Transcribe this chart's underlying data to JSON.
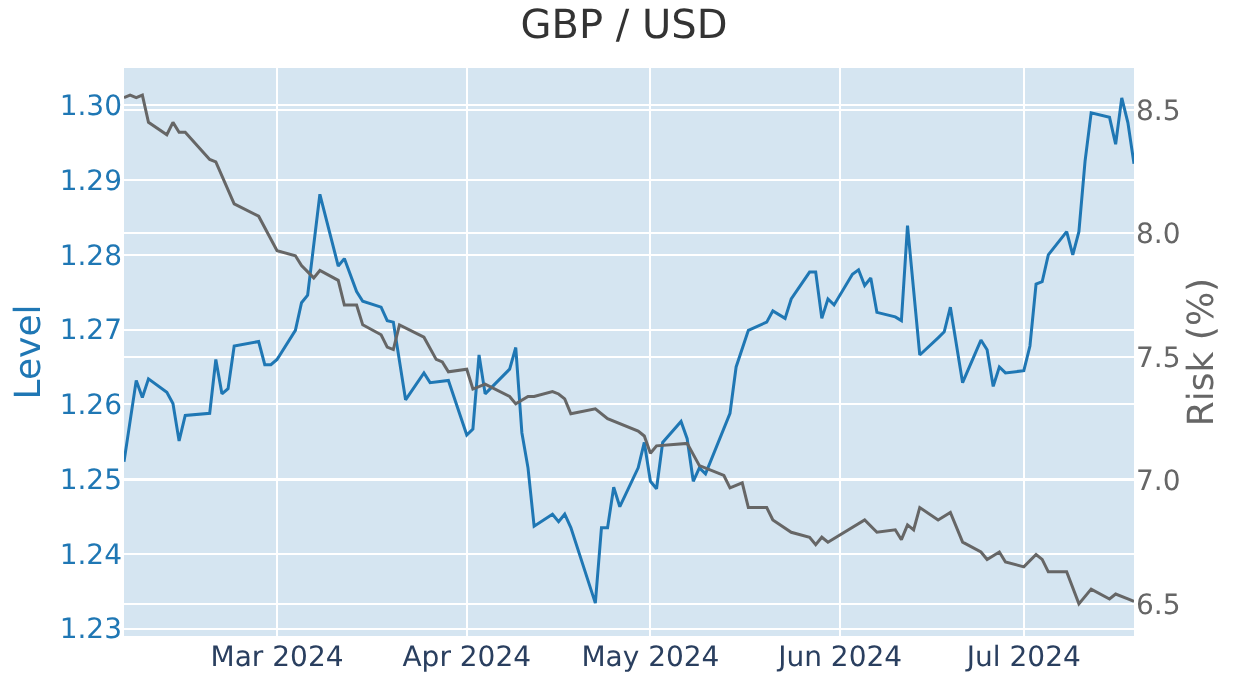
{
  "chart_data": {
    "type": "line",
    "title": "GBP / USD",
    "ylabel": "Level",
    "y2label": "Risk (%)",
    "xlim": [
      "2024-02-05",
      "2024-07-19"
    ],
    "xticks": [
      {
        "value": "2024-03-01",
        "label": "Mar 2024"
      },
      {
        "value": "2024-04-01",
        "label": "Apr 2024"
      },
      {
        "value": "2024-05-01",
        "label": "May 2024"
      },
      {
        "value": "2024-06-01",
        "label": "Jun 2024"
      },
      {
        "value": "2024-07-01",
        "label": "Jul 2024"
      }
    ],
    "ylim": [
      1.229,
      1.305
    ],
    "yticks": [
      1.23,
      1.24,
      1.25,
      1.26,
      1.27,
      1.28,
      1.29,
      {
        "value": 1.3,
        "label": "1.30"
      }
    ],
    "y2lim": [
      6.37,
      8.67
    ],
    "y2ticks": [
      6.5,
      {
        "value": 7.0,
        "label": "7.0"
      },
      7.5,
      {
        "value": 8.0,
        "label": "8.0"
      },
      8.5
    ],
    "grid": true,
    "marker": "none",
    "line_style": "solid",
    "series": [
      {
        "color": "#1f77b4",
        "x": [
          "2024-02-05",
          "2024-02-07",
          "2024-02-08",
          "2024-02-09",
          "2024-02-12",
          "2024-02-13",
          "2024-02-14",
          "2024-02-15",
          "2024-02-19",
          "2024-02-20",
          "2024-02-21",
          "2024-02-22",
          "2024-02-23",
          "2024-02-27",
          "2024-02-28",
          "2024-02-29",
          "2024-03-01",
          "2024-03-04",
          "2024-03-05",
          "2024-03-06",
          "2024-03-08",
          "2024-03-11",
          "2024-03-12",
          "2024-03-14",
          "2024-03-15",
          "2024-03-18",
          "2024-03-19",
          "2024-03-20",
          "2024-03-22",
          "2024-03-25",
          "2024-03-26",
          "2024-03-29",
          "2024-04-01",
          "2024-04-02",
          "2024-04-03",
          "2024-04-04",
          "2024-04-08",
          "2024-04-09",
          "2024-04-10",
          "2024-04-11",
          "2024-04-12",
          "2024-04-15",
          "2024-04-16",
          "2024-04-17",
          "2024-04-18",
          "2024-04-22",
          "2024-04-23",
          "2024-04-24",
          "2024-04-25",
          "2024-04-26",
          "2024-04-29",
          "2024-04-30",
          "2024-05-01",
          "2024-05-02",
          "2024-05-03",
          "2024-05-06",
          "2024-05-07",
          "2024-05-08",
          "2024-05-09",
          "2024-05-10",
          "2024-05-14",
          "2024-05-15",
          "2024-05-17",
          "2024-05-20",
          "2024-05-21",
          "2024-05-23",
          "2024-05-24",
          "2024-05-27",
          "2024-05-28",
          "2024-05-29",
          "2024-05-30",
          "2024-05-31",
          "2024-06-03",
          "2024-06-04",
          "2024-06-05",
          "2024-06-06",
          "2024-06-07",
          "2024-06-10",
          "2024-06-11",
          "2024-06-12",
          "2024-06-14",
          "2024-06-17",
          "2024-06-18",
          "2024-06-19",
          "2024-06-21",
          "2024-06-24",
          "2024-06-25",
          "2024-06-26",
          "2024-06-27",
          "2024-06-28",
          "2024-07-01",
          "2024-07-02",
          "2024-07-03",
          "2024-07-04",
          "2024-07-05",
          "2024-07-08",
          "2024-07-09",
          "2024-07-10",
          "2024-07-11",
          "2024-07-12",
          "2024-07-15",
          "2024-07-16",
          "2024-07-17",
          "2024-07-18",
          "2024-07-19"
        ],
        "values": [
          1.2523,
          1.2632,
          1.2609,
          1.2634,
          1.2616,
          1.2601,
          1.2551,
          1.2585,
          1.2588,
          1.266,
          1.2614,
          1.2621,
          1.2678,
          1.2684,
          1.2653,
          1.2653,
          1.266,
          1.2699,
          1.2736,
          1.2746,
          1.2881,
          1.2785,
          1.2795,
          1.2751,
          1.2738,
          1.273,
          1.2712,
          1.271,
          1.2606,
          1.2642,
          1.2629,
          1.2632,
          1.2559,
          1.2567,
          1.2666,
          1.2614,
          1.2647,
          1.2676,
          1.2562,
          1.2515,
          1.2437,
          1.2453,
          1.2443,
          1.2453,
          1.2435,
          1.2334,
          1.2435,
          1.2435,
          1.2489,
          1.2463,
          1.2515,
          1.2549,
          1.2497,
          1.2487,
          1.2549,
          1.2577,
          1.2554,
          1.2497,
          1.2515,
          1.2507,
          1.2588,
          1.265,
          1.2699,
          1.271,
          1.2725,
          1.2715,
          1.2741,
          1.2777,
          1.2777,
          1.2715,
          1.2741,
          1.2733,
          1.2774,
          1.278,
          1.2759,
          1.2769,
          1.2723,
          1.2717,
          1.2712,
          1.2839,
          1.2666,
          1.2689,
          1.2697,
          1.273,
          1.2629,
          1.2686,
          1.2673,
          1.2624,
          1.265,
          1.2642,
          1.2645,
          1.2678,
          1.2761,
          1.2764,
          1.28,
          1.2831,
          1.28,
          1.2831,
          1.2925,
          1.299,
          1.2984,
          1.2948,
          1.301,
          1.2977,
          1.2922
        ]
      },
      {
        "color": "#666666",
        "axis": "y2",
        "x": [
          "2024-02-05",
          "2024-02-06",
          "2024-02-07",
          "2024-02-08",
          "2024-02-09",
          "2024-02-12",
          "2024-02-13",
          "2024-02-14",
          "2024-02-15",
          "2024-02-19",
          "2024-02-20",
          "2024-02-23",
          "2024-02-27",
          "2024-03-01",
          "2024-03-04",
          "2024-03-05",
          "2024-03-07",
          "2024-03-08",
          "2024-03-11",
          "2024-03-12",
          "2024-03-14",
          "2024-03-15",
          "2024-03-18",
          "2024-03-19",
          "2024-03-20",
          "2024-03-21",
          "2024-03-25",
          "2024-03-27",
          "2024-03-28",
          "2024-03-29",
          "2024-04-01",
          "2024-04-02",
          "2024-04-04",
          "2024-04-08",
          "2024-04-09",
          "2024-04-11",
          "2024-04-12",
          "2024-04-15",
          "2024-04-16",
          "2024-04-17",
          "2024-04-18",
          "2024-04-22",
          "2024-04-24",
          "2024-04-29",
          "2024-04-30",
          "2024-05-01",
          "2024-05-02",
          "2024-05-07",
          "2024-05-09",
          "2024-05-13",
          "2024-05-14",
          "2024-05-16",
          "2024-05-17",
          "2024-05-20",
          "2024-05-21",
          "2024-05-24",
          "2024-05-27",
          "2024-05-28",
          "2024-05-29",
          "2024-05-30",
          "2024-06-05",
          "2024-06-07",
          "2024-06-10",
          "2024-06-11",
          "2024-06-12",
          "2024-06-13",
          "2024-06-14",
          "2024-06-17",
          "2024-06-19",
          "2024-06-21",
          "2024-06-24",
          "2024-06-25",
          "2024-06-27",
          "2024-06-28",
          "2024-07-01",
          "2024-07-03",
          "2024-07-04",
          "2024-07-05",
          "2024-07-08",
          "2024-07-10",
          "2024-07-12",
          "2024-07-15",
          "2024-07-16",
          "2024-07-18",
          "2024-07-19"
        ],
        "values": [
          8.55,
          8.56,
          8.55,
          8.56,
          8.45,
          8.4,
          8.45,
          8.41,
          8.41,
          8.3,
          8.29,
          8.12,
          8.07,
          7.93,
          7.91,
          7.87,
          7.82,
          7.85,
          7.81,
          7.71,
          7.71,
          7.63,
          7.59,
          7.54,
          7.53,
          7.63,
          7.58,
          7.49,
          7.48,
          7.44,
          7.45,
          7.37,
          7.39,
          7.34,
          7.31,
          7.34,
          7.34,
          7.36,
          7.35,
          7.33,
          7.27,
          7.29,
          7.25,
          7.2,
          7.18,
          7.11,
          7.14,
          7.15,
          7.06,
          7.02,
          6.97,
          6.99,
          6.89,
          6.89,
          6.84,
          6.79,
          6.77,
          6.74,
          6.77,
          6.75,
          6.84,
          6.79,
          6.8,
          6.76,
          6.82,
          6.8,
          6.89,
          6.84,
          6.87,
          6.75,
          6.71,
          6.68,
          6.71,
          6.67,
          6.65,
          6.7,
          6.68,
          6.63,
          6.63,
          6.5,
          6.56,
          6.52,
          6.54,
          6.52,
          6.51
        ]
      }
    ]
  }
}
